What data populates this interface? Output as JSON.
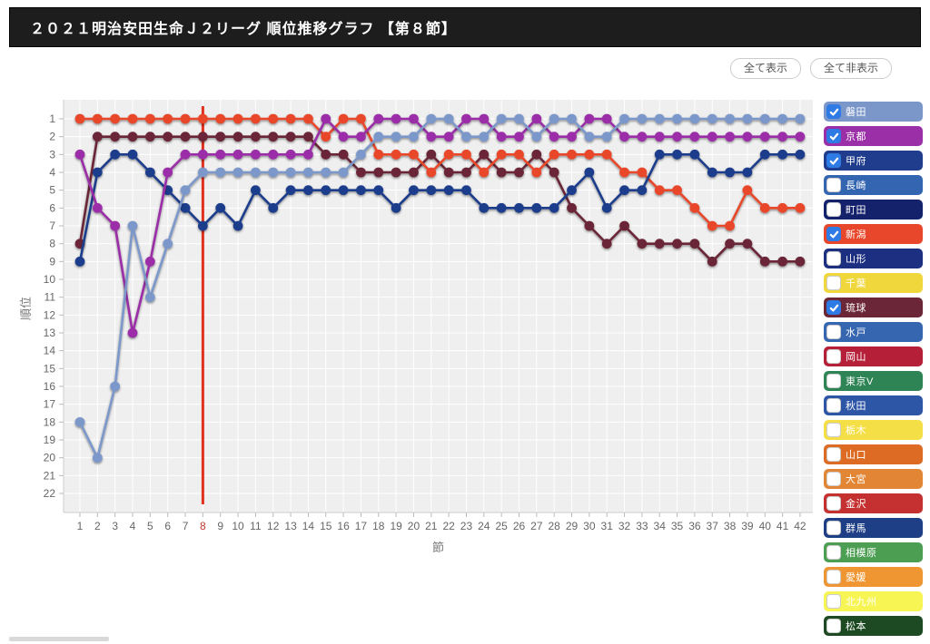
{
  "header": {
    "title": "２０２１明治安田生命Ｊ２リーグ 順位推移グラフ 【第８節】"
  },
  "controls": {
    "show_all": "全て表示",
    "hide_all": "全て非表示"
  },
  "chart_data": {
    "type": "line",
    "title": "2021 J2 League rank transition",
    "xlabel": "節",
    "ylabel": "順位",
    "x_range": [
      1,
      42
    ],
    "ylim": [
      1,
      22
    ],
    "current_week": 8,
    "current_week_line_color": "#e0301e",
    "grid": true,
    "legend_position": "right",
    "series": [
      {
        "name": "磐田",
        "color": "#7b97c9",
        "values": [
          18,
          20,
          16,
          7,
          11,
          8,
          5,
          4,
          4,
          4,
          4,
          4,
          4,
          4,
          4,
          4,
          3,
          2,
          2,
          2,
          1,
          1,
          2,
          2,
          1,
          1,
          2,
          1,
          1,
          2,
          2,
          1,
          1,
          1,
          1,
          1,
          1,
          1,
          1,
          1,
          1,
          1
        ]
      },
      {
        "name": "京都",
        "color": "#9b2fa8",
        "values": [
          3,
          6,
          7,
          13,
          9,
          4,
          3,
          3,
          3,
          3,
          3,
          3,
          3,
          3,
          1,
          2,
          2,
          1,
          1,
          1,
          2,
          2,
          1,
          1,
          2,
          2,
          1,
          2,
          2,
          1,
          1,
          2,
          2,
          2,
          2,
          2,
          2,
          2,
          2,
          2,
          2,
          2
        ]
      },
      {
        "name": "甲府",
        "color": "#1f3d8c",
        "values": [
          9,
          4,
          3,
          3,
          4,
          5,
          6,
          7,
          6,
          7,
          5,
          6,
          5,
          5,
          5,
          5,
          5,
          5,
          6,
          5,
          5,
          5,
          5,
          6,
          6,
          6,
          6,
          6,
          5,
          4,
          6,
          5,
          5,
          3,
          3,
          3,
          4,
          4,
          4,
          3,
          3,
          3
        ]
      },
      {
        "name": "新潟",
        "color": "#e8472b",
        "values": [
          1,
          1,
          1,
          1,
          1,
          1,
          1,
          1,
          1,
          1,
          1,
          1,
          1,
          1,
          2,
          1,
          1,
          3,
          3,
          3,
          4,
          3,
          3,
          4,
          3,
          3,
          4,
          3,
          3,
          3,
          3,
          4,
          4,
          5,
          5,
          6,
          7,
          7,
          5,
          6,
          6,
          6
        ]
      },
      {
        "name": "琉球",
        "color": "#6b2737",
        "values": [
          8,
          2,
          2,
          2,
          2,
          2,
          2,
          2,
          2,
          2,
          2,
          2,
          2,
          2,
          3,
          3,
          4,
          4,
          4,
          4,
          3,
          4,
          4,
          3,
          4,
          4,
          3,
          4,
          6,
          7,
          8,
          7,
          8,
          8,
          8,
          8,
          9,
          8,
          8,
          9,
          9,
          9
        ]
      }
    ]
  },
  "legend": {
    "teams": [
      {
        "name": "磐田",
        "color": "#7b97c9",
        "checked": true
      },
      {
        "name": "京都",
        "color": "#9b2fa8",
        "checked": true
      },
      {
        "name": "甲府",
        "color": "#1f3d8c",
        "checked": true
      },
      {
        "name": "長崎",
        "color": "#3465b0",
        "checked": false
      },
      {
        "name": "町田",
        "color": "#14216b",
        "checked": false
      },
      {
        "name": "新潟",
        "color": "#e8472b",
        "checked": true
      },
      {
        "name": "山形",
        "color": "#1c2f80",
        "checked": false
      },
      {
        "name": "千葉",
        "color": "#f0d73c",
        "checked": false
      },
      {
        "name": "琉球",
        "color": "#6b2737",
        "checked": true
      },
      {
        "name": "水戸",
        "color": "#3766b0",
        "checked": false
      },
      {
        "name": "岡山",
        "color": "#b51f38",
        "checked": false
      },
      {
        "name": "東京V",
        "color": "#2e8455",
        "checked": false
      },
      {
        "name": "秋田",
        "color": "#2e56a6",
        "checked": false
      },
      {
        "name": "栃木",
        "color": "#f5df46",
        "checked": false
      },
      {
        "name": "山口",
        "color": "#dd6b24",
        "checked": false
      },
      {
        "name": "大宮",
        "color": "#e28636",
        "checked": false
      },
      {
        "name": "金沢",
        "color": "#c53030",
        "checked": false
      },
      {
        "name": "群馬",
        "color": "#1e3e85",
        "checked": false
      },
      {
        "name": "相模原",
        "color": "#4c9e53",
        "checked": false
      },
      {
        "name": "愛媛",
        "color": "#ef9632",
        "checked": false
      },
      {
        "name": "北九州",
        "color": "#f7f554",
        "checked": false
      },
      {
        "name": "松本",
        "color": "#1d4a22",
        "checked": false
      }
    ]
  }
}
